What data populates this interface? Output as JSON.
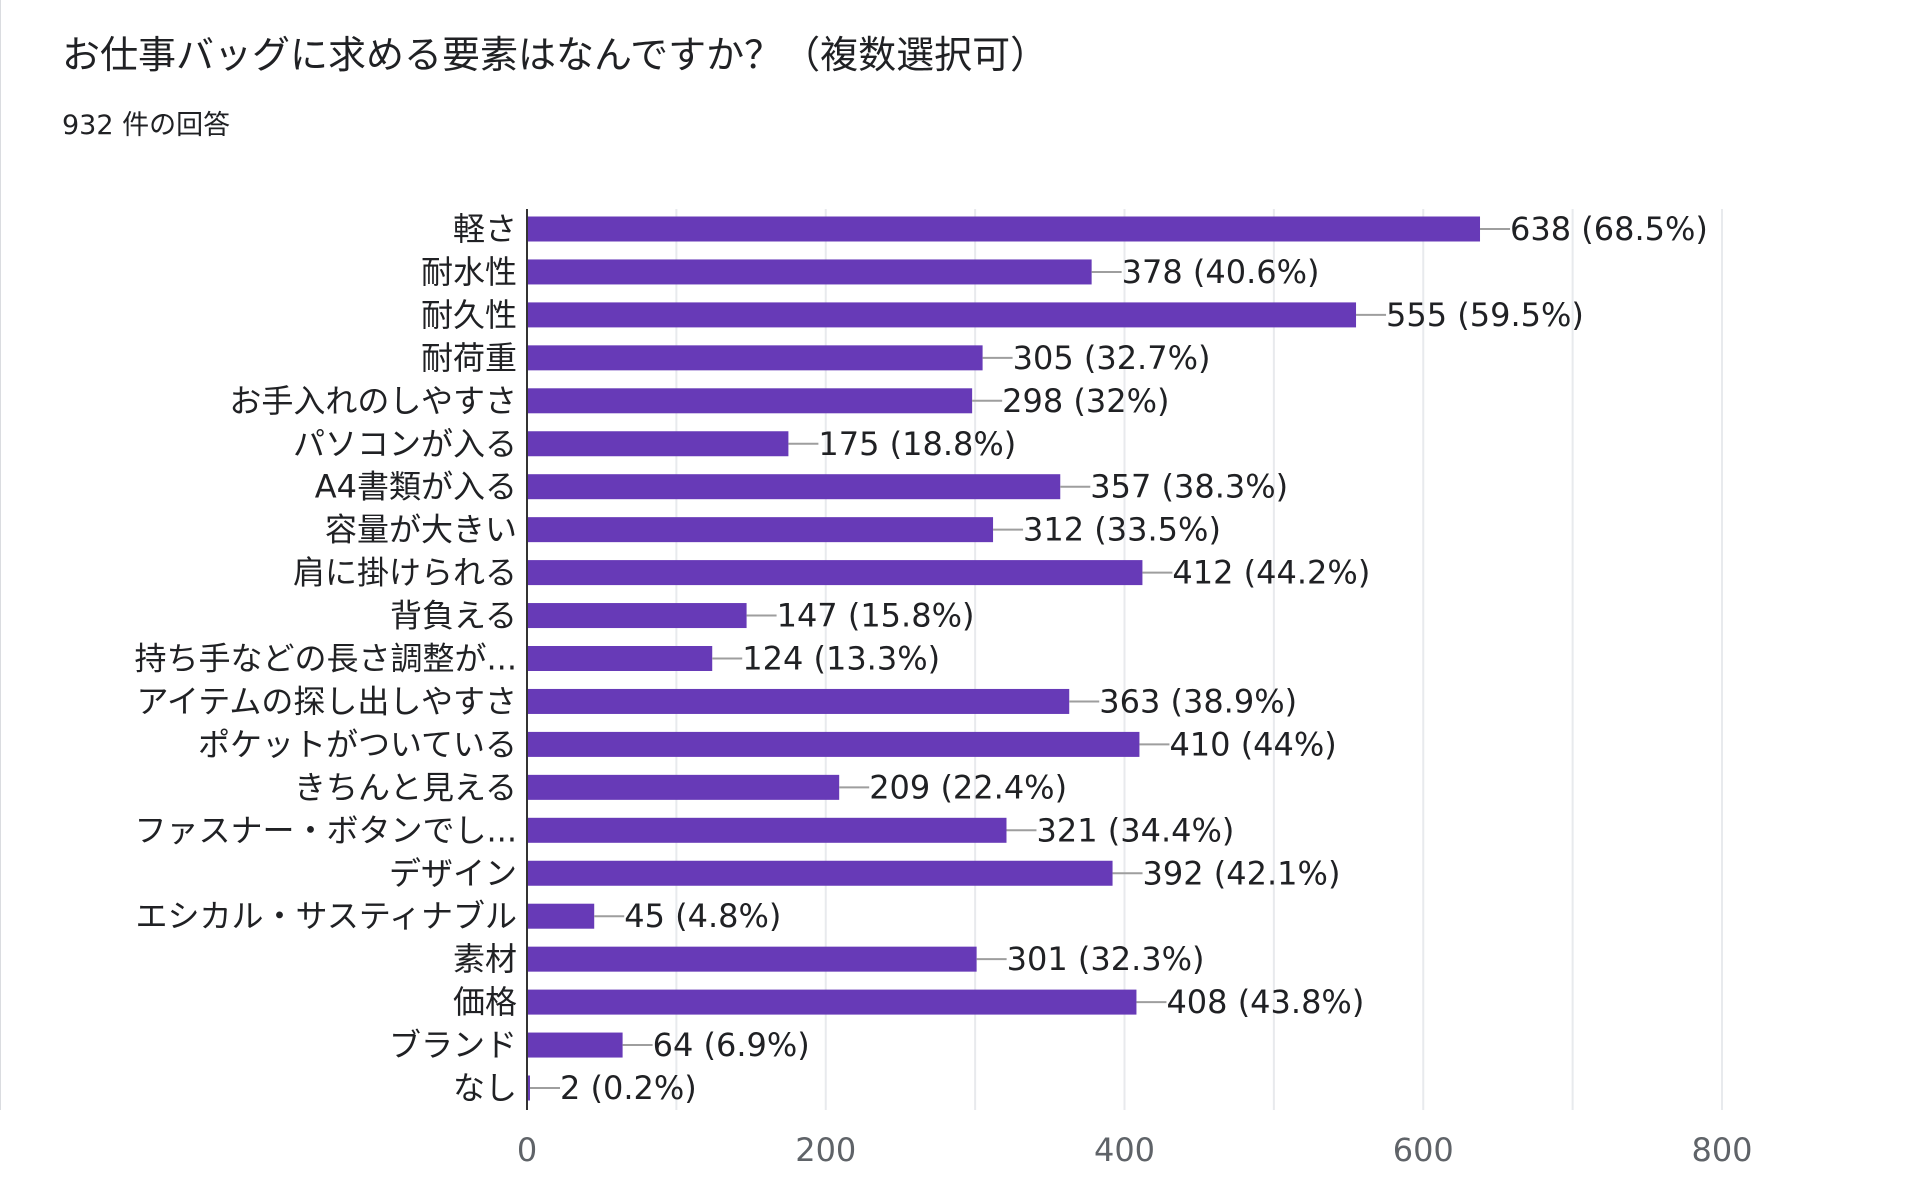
{
  "title": "お仕事バッグに求める要素はなんですか？（複数選択可）",
  "subtitle": "932 件の回答",
  "colors": {
    "bar": "#673ab7",
    "grid": "#e8eaed",
    "axis": "#333333",
    "leader": "#9e9e9e",
    "text": "#202124"
  },
  "chart_data": {
    "type": "bar",
    "orientation": "horizontal",
    "title": "お仕事バッグに求める要素はなんですか？（複数選択可）",
    "xlabel": "",
    "ylabel": "",
    "xlim": [
      0,
      800
    ],
    "grid": true,
    "x_ticks": [
      0,
      200,
      400,
      600,
      800
    ],
    "x_tick_labels": [
      "0",
      "200",
      "400",
      "600",
      "800"
    ],
    "categories": [
      "軽さ",
      "耐水性",
      "耐久性",
      "耐荷重",
      "お手入れのしやすさ",
      "パソコンが入る",
      "A4書類が入る",
      "容量が大きい",
      "肩に掛けられる",
      "背負える",
      "持ち手などの長さ調整が...",
      "アイテムの探し出しやすさ",
      "ポケットがついている",
      "きちんと見える",
      "ファスナー・ボタンでし...",
      "デザイン",
      "エシカル・サスティナブル",
      "素材",
      "価格",
      "ブランド",
      "なし"
    ],
    "values": [
      638,
      378,
      555,
      305,
      298,
      175,
      357,
      312,
      412,
      147,
      124,
      363,
      410,
      209,
      321,
      392,
      45,
      301,
      408,
      64,
      2
    ],
    "data_labels": [
      "638 (68.5%)",
      "378 (40.6%)",
      "555 (59.5%)",
      "305 (32.7%)",
      "298 (32%)",
      "175 (18.8%)",
      "357 (38.3%)",
      "312 (33.5%)",
      "412 (44.2%)",
      "147 (15.8%)",
      "124 (13.3%)",
      "363 (38.9%)",
      "410 (44%)",
      "209 (22.4%)",
      "321 (34.4%)",
      "392 (42.1%)",
      "45 (4.8%)",
      "301 (32.3%)",
      "408 (43.8%)",
      "64 (6.9%)",
      "2 (0.2%)"
    ]
  }
}
